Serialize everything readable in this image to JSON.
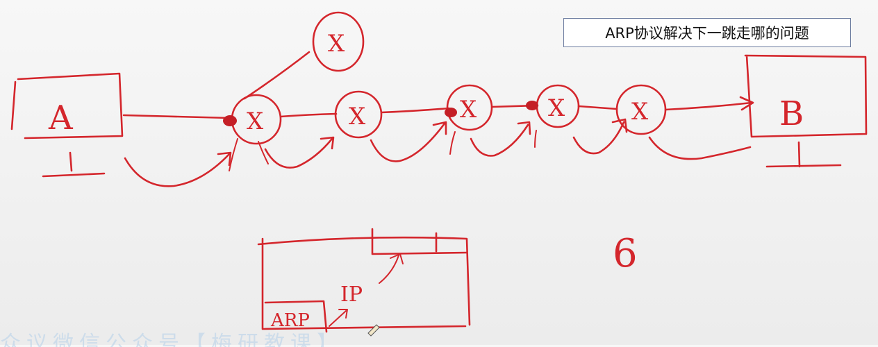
{
  "note": {
    "text": "ARP协议解决下一跳走哪的问题"
  },
  "hosts": {
    "a_label": "A",
    "b_label": "B"
  },
  "routers": {
    "mark": "X"
  },
  "frame_sketch": {
    "arp_label": "ARP",
    "ip_label": "IP"
  },
  "side_mark": "6",
  "watermark": "众议微信公众号【梅研教课】",
  "colors": {
    "ink": "#d4262c",
    "note_border": "#6d7da0",
    "watermark": "#b9d3ea"
  }
}
